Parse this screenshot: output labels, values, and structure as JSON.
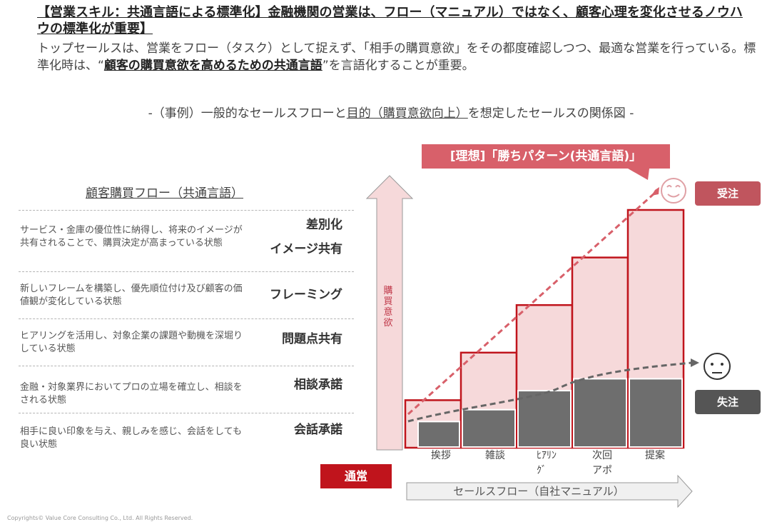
{
  "headline": {
    "prefix": "【営業スキル：共通言語による標準化】",
    "rest": "金融機関の営業は、フロー（マニュアル）ではなく、顧客心理を変化させるノウハウの標準化が重要】"
  },
  "lead": {
    "part1": "トップセールスは、営業をフロー（タスク）として捉えず、「相手の購買意欲」をその都度確認しつつ、最適な営業を行っている。標準化時は、“",
    "emphasis": "顧客の購買意欲を高めるための共通言語",
    "part2": "”を言語化することが重要。"
  },
  "subtitle": {
    "before": "-（事例）一般的なセールスフローと",
    "underlined": "目的（購買意欲向上）",
    "after": "を想定したセールスの関係図 -"
  },
  "flow_title": "顧客購買フロー（共通言語）",
  "stages": [
    {
      "name": "差別化",
      "name2": "イメージ共有",
      "desc": "サービス・金庫の優位性に納得し、将来のイメージが共有されることで、購買決定が高まっている状態"
    },
    {
      "name": "フレーミング",
      "desc": "新しいフレームを構築し、優先順位付け及び顧客の価値観が変化している状態"
    },
    {
      "name": "問題点共有",
      "desc": "ヒアリングを活用し、対象企業の課題や動機を深堀りしている状態"
    },
    {
      "name": "相談承諾",
      "desc": "金融・対象業界においてプロの立場を確立し、相談をされる状態"
    },
    {
      "name": "会話承諾",
      "desc": "相手に良い印象を与え、親しみを感じ、会話をしても良い状態"
    }
  ],
  "vertical_arrow_label": "購買意欲",
  "callout": "[理想]「勝ちパターン(共通言語)」",
  "tags": {
    "win": "受注",
    "lose": "失注"
  },
  "normal_label": "通常",
  "sales_flow_label": "セールスフロー（自社マニュアル）",
  "steps": [
    "挨拶",
    "雑談",
    "ﾋｱﾘﾝ\nｸﾞ",
    "次回\nアポ",
    "提案"
  ],
  "step_levels": {
    "ideal": [
      1,
      2,
      3,
      4,
      5
    ],
    "normal": [
      0.55,
      0.8,
      1.2,
      1.45,
      1.45
    ]
  },
  "colors": {
    "red": "#c0141c",
    "pink": "#f6d9da",
    "gray": "#6e6e6e",
    "accent": "#d8606a"
  },
  "copyright": "Copyrights© Value Core Consulting Co., Ltd. All Rights Reserved."
}
